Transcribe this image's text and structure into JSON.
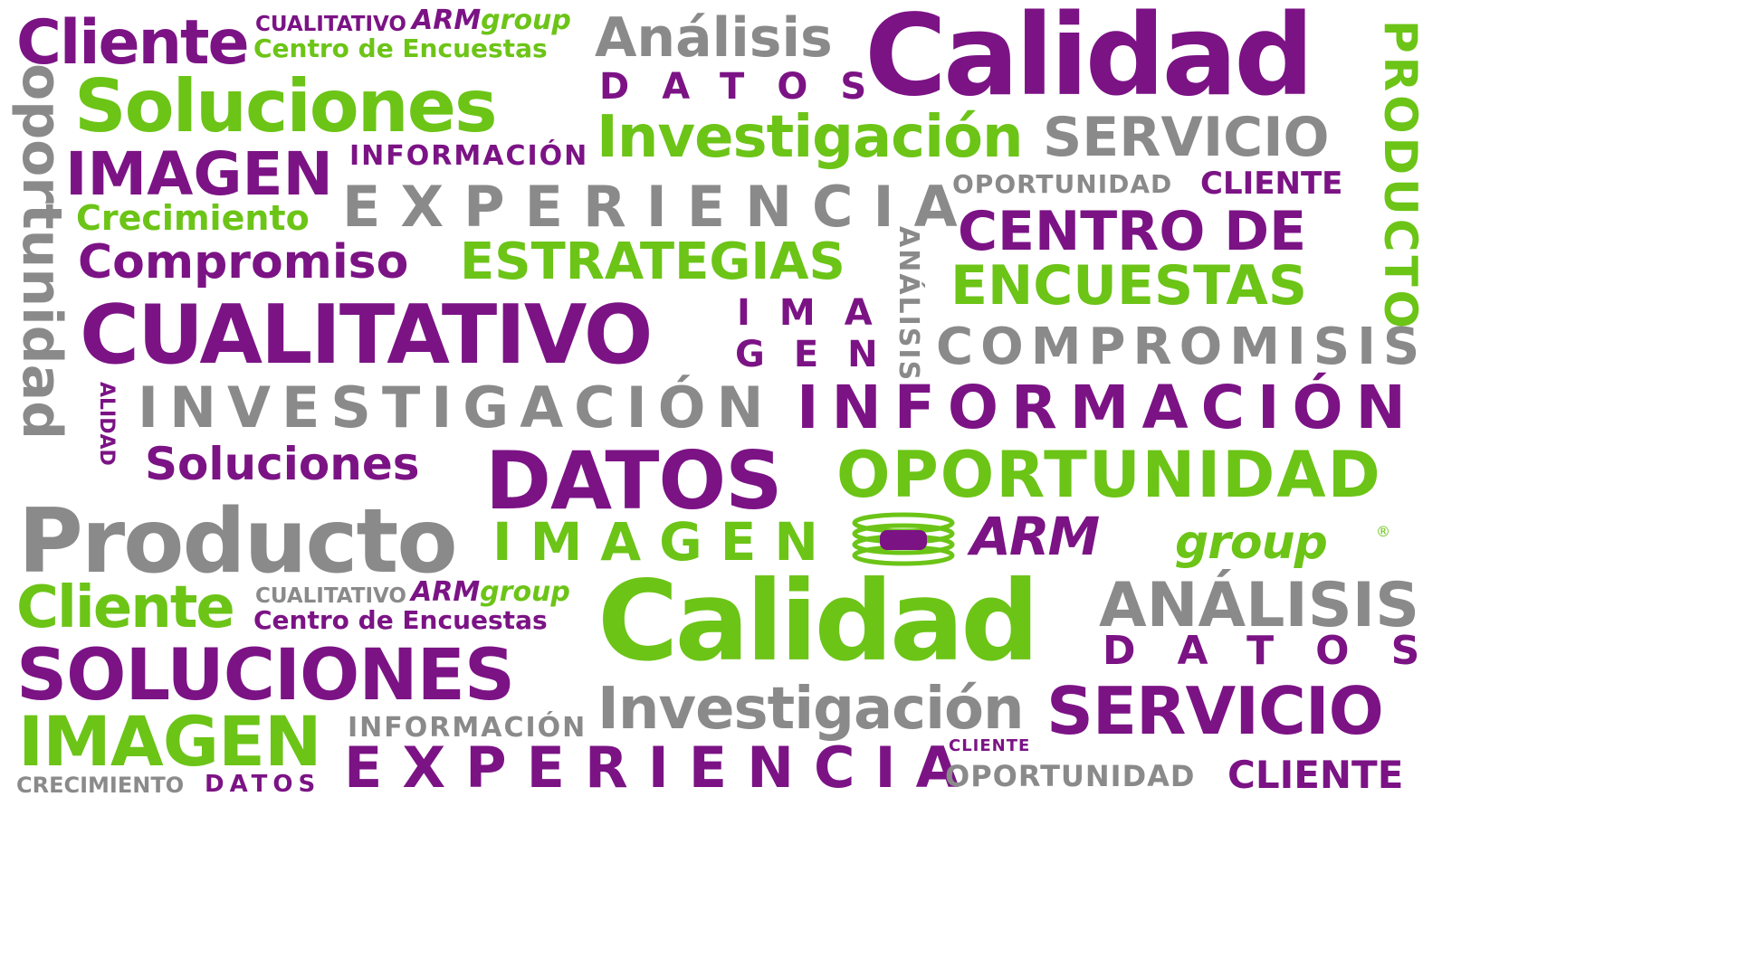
{
  "colors": {
    "purple": "#7b1385",
    "green": "#6cc417",
    "gray": "#8a8a8a",
    "background": "#ffffff"
  },
  "words": {
    "w1": "Cliente",
    "w2": "CUALITATIVO",
    "w3": "Centro de Encuestas",
    "w4": "Análisis",
    "w5": "Calidad",
    "w6": "PRODUCTO",
    "w7": "oportunidad",
    "w8": "Soluciones",
    "w9": "DATOS",
    "w10": "Investigación",
    "w11": "SERVICIO",
    "w12": "INFORMACIÓN",
    "w13": "IMAGEN",
    "w14": "OPORTUNIDAD",
    "w15": "CLIENTE",
    "w16": "EXPERIENCIA",
    "w17": "Crecimiento",
    "w18": "CENTRO DE",
    "w19": "ANÁLISIS",
    "w20": "Compromiso",
    "w21": "ESTRATEGIAS",
    "w22": "ENCUESTAS",
    "w23": "CUALITATIVO",
    "w24": "IMA",
    "w25": "GEN",
    "w26": "COMPROMISIS",
    "w27": "ALIDAD",
    "w28": "INVESTIGACIÓN",
    "w29": "INFORMACIÓN",
    "w30": "Soluciones",
    "w31": "DATOS",
    "w32": "OPORTUNIDAD",
    "w33": "Producto",
    "w34": "IMAGEN",
    "w35": "Cliente",
    "w36": "CUALITATIVO",
    "w37": "Centro de Encuestas",
    "w38": "Calidad",
    "w39": "ANÁLISIS",
    "w40": "DATOS",
    "w41": "SOLUCIONES",
    "w42": "Investigación",
    "w43": "SERVICIO",
    "w44": "IMAGEN",
    "w45": "INFORMACIÓN",
    "w46": "CLIENTE",
    "w47": "EXPERIENCIA",
    "w48": "CRECIMIENTO",
    "w49": "DATOS",
    "w50": "OPORTUNIDAD",
    "w51": "CLIENTE"
  },
  "logo": {
    "arm": "ARM",
    "group": "group",
    "registered": "®",
    "icon": "armgroup-rings-icon"
  }
}
